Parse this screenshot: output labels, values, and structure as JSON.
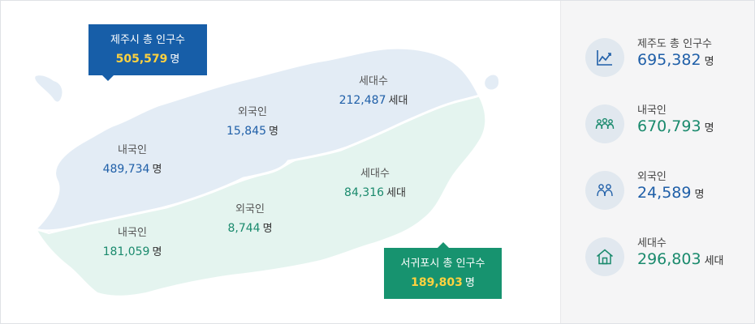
{
  "map": {
    "jeju_callout": {
      "title": "제주시 총 인구수",
      "value": "505,579",
      "unit": "명"
    },
    "seogwipo_callout": {
      "title": "서귀포시 총 인구수",
      "value": "189,803",
      "unit": "명"
    },
    "jeju": {
      "households": {
        "label": "세대수",
        "value": "212,487",
        "unit": "세대"
      },
      "foreigners": {
        "label": "외국인",
        "value": "15,845",
        "unit": "명"
      },
      "locals": {
        "label": "내국인",
        "value": "489,734",
        "unit": "명"
      }
    },
    "seogwipo": {
      "households": {
        "label": "세대수",
        "value": "84,316",
        "unit": "세대"
      },
      "foreigners": {
        "label": "외국인",
        "value": "8,744",
        "unit": "명"
      },
      "locals": {
        "label": "내국인",
        "value": "181,059",
        "unit": "명"
      }
    },
    "colors": {
      "jeju_region": "#e3ecf5",
      "seogwipo_region": "#e4f4ef",
      "jeju_accent": "#175ea8",
      "seogwipo_accent": "#17936f",
      "highlight": "#ffd23f"
    }
  },
  "summary": [
    {
      "label": "제주도 총 인구수",
      "value": "695,382",
      "unit": "명",
      "icon": "line-chart-icon",
      "tone": "blue"
    },
    {
      "label": "내국인",
      "value": "670,793",
      "unit": "명",
      "icon": "people-group-icon",
      "tone": "green"
    },
    {
      "label": "외국인",
      "value": "24,589",
      "unit": "명",
      "icon": "people-pair-icon",
      "tone": "blue"
    },
    {
      "label": "세대수",
      "value": "296,803",
      "unit": "세대",
      "icon": "house-icon",
      "tone": "green"
    }
  ]
}
